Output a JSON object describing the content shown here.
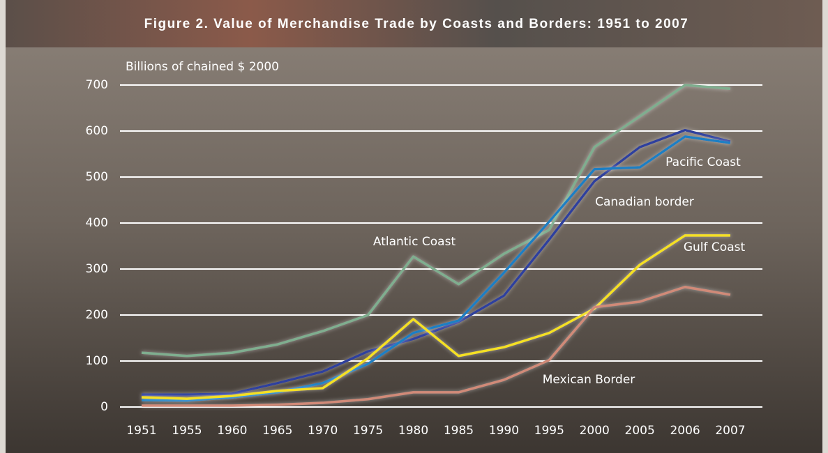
{
  "chart_data": {
    "type": "line",
    "title": "Figure 2.  Value of Merchandise Trade by Coasts and Borders: 1951 to 2007",
    "y_label": "Billions of chained $ 2000",
    "categories": [
      "1951",
      "1955",
      "1960",
      "1965",
      "1970",
      "1975",
      "1980",
      "1985",
      "1990",
      "1995",
      "2000",
      "2005",
      "2006",
      "2007"
    ],
    "ylim": [
      0,
      700
    ],
    "yticks": [
      0,
      100,
      200,
      300,
      400,
      500,
      600,
      700
    ],
    "grid": true,
    "series": [
      {
        "name": "Atlantic Coast",
        "color": "#7fae8f",
        "values": [
          118,
          111,
          118,
          136,
          165,
          200,
          327,
          267,
          333,
          385,
          565,
          632,
          700,
          692
        ]
      },
      {
        "name": "Pacific Coast",
        "color": "#2f3f9e",
        "values": [
          27,
          27,
          29,
          52,
          77,
          121,
          148,
          185,
          242,
          364,
          491,
          565,
          602,
          577
        ]
      },
      {
        "name": "Canadian border",
        "color": "#1f7fc4",
        "values": [
          15,
          14,
          21,
          32,
          52,
          94,
          161,
          188,
          292,
          403,
          517,
          521,
          588,
          574
        ]
      },
      {
        "name": "Gulf Coast",
        "color": "#f5e020",
        "values": [
          21,
          18,
          24,
          35,
          41,
          106,
          191,
          111,
          130,
          161,
          214,
          309,
          373,
          373
        ]
      },
      {
        "name": "Mexican Border",
        "color": "#d18a78",
        "values": [
          3,
          3,
          3,
          5,
          9,
          17,
          32,
          32,
          59,
          102,
          217,
          229,
          261,
          244
        ]
      }
    ]
  }
}
